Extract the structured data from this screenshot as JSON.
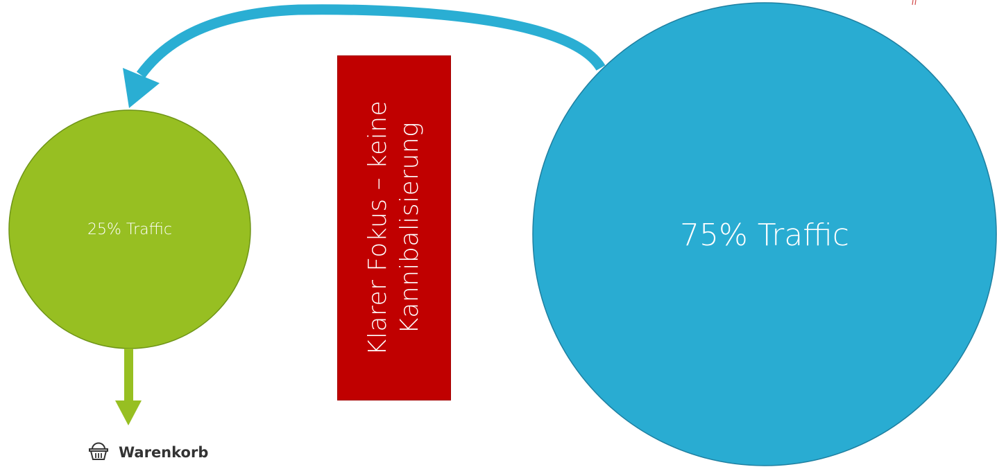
{
  "colors": {
    "small_circle": "#97bf22",
    "small_circle_stroke": "#6e9417",
    "large_circle": "#29acd2",
    "large_circle_stroke": "#1e7fa0",
    "arrow_blue": "#2aaed3",
    "arrow_green": "#97bf22",
    "focus_box": "#c00000"
  },
  "small_circle": {
    "label": "25% Traffic"
  },
  "large_circle": {
    "label": "75% Traffic"
  },
  "focus_box": {
    "text": "Klarer Fokus – keine Kannibalisierung"
  },
  "cart": {
    "icon": "shopping-basket-icon",
    "label": "Warenkorb"
  }
}
